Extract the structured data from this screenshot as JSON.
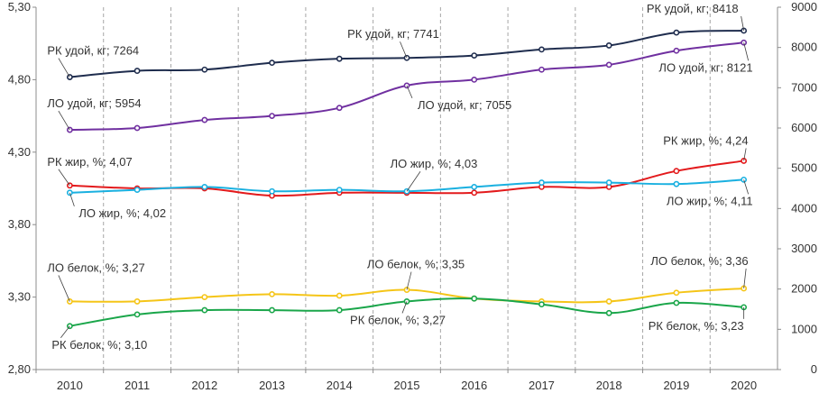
{
  "chart_data": {
    "type": "line",
    "categories": [
      "2010",
      "2011",
      "2012",
      "2013",
      "2014",
      "2015",
      "2016",
      "2017",
      "2018",
      "2019",
      "2020"
    ],
    "left_axis": {
      "ylim": [
        2.8,
        5.3
      ],
      "ticks": [
        "2,80",
        "3,30",
        "3,80",
        "4,30",
        "4,80",
        "5,30"
      ],
      "tick_values": [
        2.8,
        3.3,
        3.8,
        4.3,
        4.8,
        5.3
      ]
    },
    "right_axis": {
      "ylim": [
        0,
        9000
      ],
      "ticks": [
        "0",
        "1000",
        "2000",
        "3000",
        "4000",
        "5000",
        "6000",
        "7000",
        "8000",
        "9000"
      ],
      "tick_values": [
        0,
        1000,
        2000,
        3000,
        4000,
        5000,
        6000,
        7000,
        8000,
        9000
      ]
    },
    "grid": "vertical dashed",
    "legend": "none",
    "series": [
      {
        "name": "РК удой, кг",
        "axis": "right",
        "color": "#1f2d4e",
        "values": [
          7264,
          7420,
          7450,
          7620,
          7720,
          7741,
          7800,
          7950,
          8050,
          8370,
          8418
        ]
      },
      {
        "name": "ЛО удой, кг",
        "axis": "right",
        "color": "#7030a0",
        "values": [
          5954,
          6000,
          6200,
          6300,
          6500,
          7055,
          7200,
          7450,
          7570,
          7920,
          8121
        ]
      },
      {
        "name": "РК жир, %",
        "axis": "left",
        "color": "#e31a1c",
        "values": [
          4.07,
          4.05,
          4.05,
          4.0,
          4.02,
          4.02,
          4.02,
          4.06,
          4.06,
          4.17,
          4.24
        ]
      },
      {
        "name": "ЛО жир, %",
        "axis": "left",
        "color": "#1ab0e0",
        "values": [
          4.02,
          4.04,
          4.06,
          4.03,
          4.04,
          4.03,
          4.06,
          4.09,
          4.09,
          4.08,
          4.11
        ]
      },
      {
        "name": "ЛО белок, %",
        "axis": "left",
        "color": "#f5c518",
        "values": [
          3.27,
          3.27,
          3.3,
          3.32,
          3.31,
          3.35,
          3.29,
          3.27,
          3.27,
          3.33,
          3.36
        ]
      },
      {
        "name": "РК белок, %",
        "axis": "left",
        "color": "#1aa64a",
        "values": [
          3.1,
          3.18,
          3.21,
          3.21,
          3.21,
          3.27,
          3.29,
          3.25,
          3.19,
          3.26,
          3.23
        ]
      }
    ],
    "annotations": [
      {
        "text": "РК удой, кг; 7264",
        "series": 0,
        "index": 0
      },
      {
        "text": "РК удой, кг; 7741",
        "series": 0,
        "index": 5
      },
      {
        "text": "РК удой, кг; 8418",
        "series": 0,
        "index": 10
      },
      {
        "text": "ЛО удой, кг; 5954",
        "series": 1,
        "index": 0
      },
      {
        "text": "ЛО удой, кг; 7055",
        "series": 1,
        "index": 5
      },
      {
        "text": "ЛО удой, кг; 8121",
        "series": 1,
        "index": 10
      },
      {
        "text": "РК жир, %; 4,07",
        "series": 2,
        "index": 0
      },
      {
        "text": "РК жир, %; 4,24",
        "series": 2,
        "index": 10
      },
      {
        "text": "ЛО жир, %; 4,02",
        "series": 3,
        "index": 0
      },
      {
        "text": "ЛО жир, %; 4,03",
        "series": 3,
        "index": 5
      },
      {
        "text": "ЛО жир, %; 4,11",
        "series": 3,
        "index": 10
      },
      {
        "text": "ЛО белок, %; 3,27",
        "series": 4,
        "index": 0
      },
      {
        "text": "ЛО белок, %; 3,35",
        "series": 4,
        "index": 5
      },
      {
        "text": "ЛО белок, %; 3,36",
        "series": 4,
        "index": 10
      },
      {
        "text": "РК белок, %; 3,10",
        "series": 5,
        "index": 0
      },
      {
        "text": "РК белок, %; 3,27",
        "series": 5,
        "index": 5
      },
      {
        "text": "РК белок, %; 3,23",
        "series": 5,
        "index": 10
      }
    ]
  }
}
